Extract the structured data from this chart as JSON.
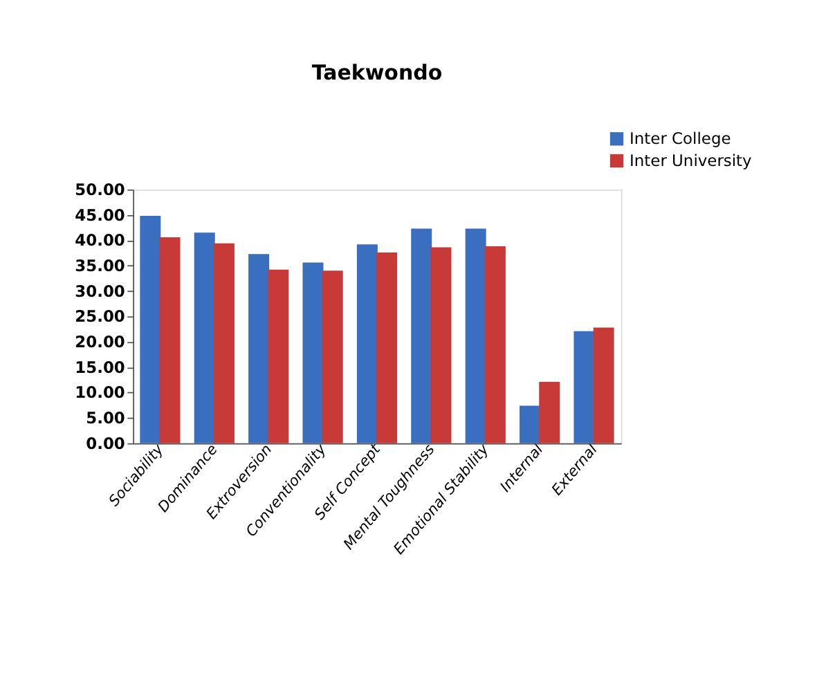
{
  "chart_data": {
    "type": "bar",
    "title": "Taekwondo",
    "categories": [
      "Sociability",
      "Dominance",
      "Extroversion",
      "Conventionality",
      "Self Concept",
      "Mental Toughness",
      "Emotional Stability",
      "Internal",
      "External"
    ],
    "series": [
      {
        "name": "Inter College",
        "color": "#3a6fbf",
        "values": [
          44.8,
          41.5,
          37.3,
          35.6,
          39.2,
          42.3,
          42.3,
          7.4,
          22.1
        ]
      },
      {
        "name": "Inter University",
        "color": "#c83a38",
        "values": [
          40.6,
          39.4,
          34.2,
          34.0,
          37.6,
          38.6,
          38.8,
          12.1,
          22.8
        ]
      }
    ],
    "ylim": [
      0,
      50
    ],
    "yticks": [
      {
        "value": 0,
        "label": "0.00"
      },
      {
        "value": 5,
        "label": "5.00"
      },
      {
        "value": 10,
        "label": "10.00"
      },
      {
        "value": 15,
        "label": "15.00"
      },
      {
        "value": 20,
        "label": "20.00"
      },
      {
        "value": 25,
        "label": "25.00"
      },
      {
        "value": 30,
        "label": "30.00"
      },
      {
        "value": 35,
        "label": "35.00"
      },
      {
        "value": 40,
        "label": "40.00"
      },
      {
        "value": 45,
        "label": "45.00"
      },
      {
        "value": 50,
        "label": "50.00"
      }
    ],
    "grid": false,
    "legend": "top right"
  }
}
